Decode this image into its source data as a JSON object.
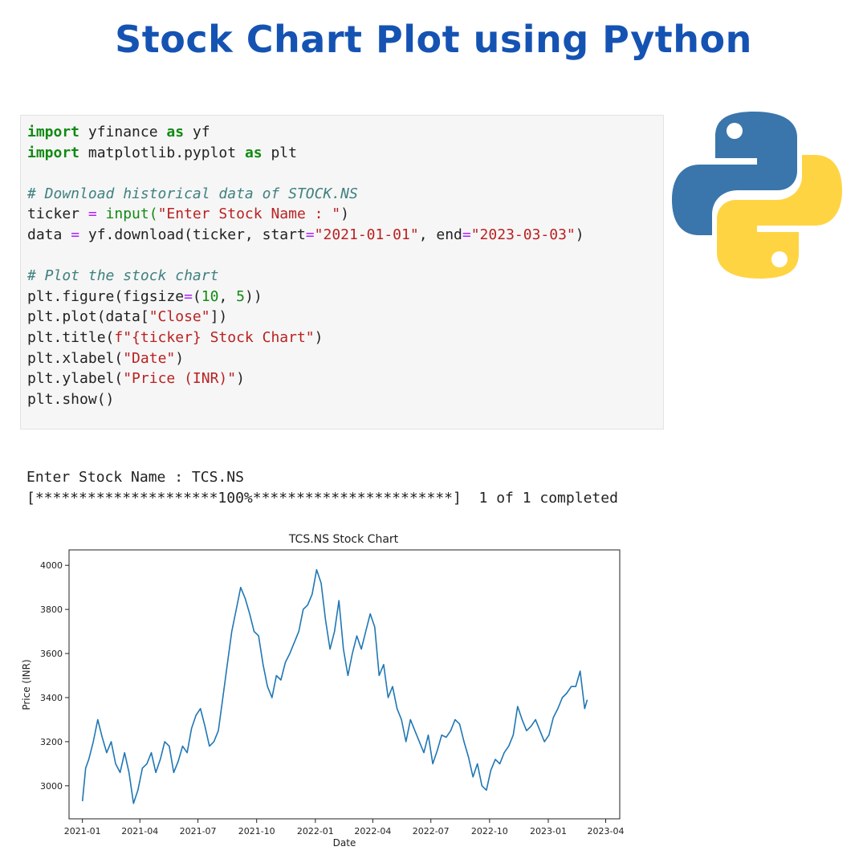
{
  "header": {
    "title": "Stock Chart Plot using Python"
  },
  "code": {
    "import_kw": "import",
    "as_kw": "as",
    "mod_yfinance": " yfinance ",
    "alias_yf": " yf",
    "mod_matplotlib": " matplotlib.pyplot ",
    "alias_plt": " plt",
    "comment_download": "# Download historical data of STOCK.NS",
    "ticker_lhs": "ticker ",
    "eq": "=",
    "input_call": " input(",
    "prompt_str": "\"Enter Stock Name : \"",
    "close_paren": ")",
    "data_lhs": "data ",
    "download_call": " yf.download(ticker, start",
    "start_str": "\"2021-01-01\"",
    "end_kw": ", end",
    "end_str": "\"2023-03-03\"",
    "comment_plot": "# Plot the stock chart",
    "figure_call": "plt.figure(figsize",
    "figsize_open": "(",
    "fig_w": "10",
    "fig_sep": ", ",
    "fig_h": "5",
    "figure_close": "))",
    "plot_call": "plt.plot(data[",
    "close_str": "\"Close\"",
    "plot_close": "])",
    "title_call": "plt.title(",
    "title_str": "f\"{ticker} Stock Chart\"",
    "xlabel_call": "plt.xlabel(",
    "xlabel_str": "\"Date\"",
    "ylabel_call": "plt.ylabel(",
    "ylabel_str": "\"Price (INR)\"",
    "show_call": "plt.show()"
  },
  "output": {
    "prompt_line": "Enter Stock Name : TCS.NS",
    "progress_line": "[*********************100%***********************]  1 of 1 completed"
  },
  "logo": {
    "name": "python-logo",
    "colors": {
      "blue": "#3a76ab",
      "yellow": "#ffd443"
    }
  },
  "colors": {
    "title": "#1553b3",
    "line": "#1f77b4"
  },
  "chart_data": {
    "type": "line",
    "title": "TCS.NS Stock Chart",
    "xlabel": "Date",
    "ylabel": "Price (INR)",
    "xlim": [
      "2020-12-11",
      "2023-04-23"
    ],
    "ylim": [
      2850,
      4070
    ],
    "xticks": [
      "2021-01",
      "2021-04",
      "2021-07",
      "2021-10",
      "2022-01",
      "2022-04",
      "2022-07",
      "2022-10",
      "2023-01",
      "2023-04"
    ],
    "yticks": [
      3000,
      3200,
      3400,
      3600,
      3800,
      4000
    ],
    "grid": false,
    "series": [
      {
        "x": [
          "2021-01-01",
          "2021-01-06",
          "2021-01-11",
          "2021-01-18",
          "2021-01-25",
          "2021-02-01",
          "2021-02-08",
          "2021-02-15",
          "2021-02-22",
          "2021-03-01",
          "2021-03-08",
          "2021-03-15",
          "2021-03-22",
          "2021-03-29",
          "2021-04-05",
          "2021-04-12",
          "2021-04-19",
          "2021-04-26",
          "2021-05-03",
          "2021-05-10",
          "2021-05-17",
          "2021-05-24",
          "2021-05-31",
          "2021-06-07",
          "2021-06-14",
          "2021-06-21",
          "2021-06-28",
          "2021-07-05",
          "2021-07-12",
          "2021-07-19",
          "2021-07-26",
          "2021-08-02",
          "2021-08-09",
          "2021-08-16",
          "2021-08-23",
          "2021-08-30",
          "2021-09-06",
          "2021-09-13",
          "2021-09-20",
          "2021-09-27",
          "2021-10-04",
          "2021-10-11",
          "2021-10-18",
          "2021-10-25",
          "2021-11-01",
          "2021-11-08",
          "2021-11-15",
          "2021-11-22",
          "2021-11-29",
          "2021-12-06",
          "2021-12-13",
          "2021-12-20",
          "2021-12-27",
          "2022-01-03",
          "2022-01-10",
          "2022-01-17",
          "2022-01-24",
          "2022-01-31",
          "2022-02-07",
          "2022-02-14",
          "2022-02-21",
          "2022-02-28",
          "2022-03-07",
          "2022-03-14",
          "2022-03-21",
          "2022-03-28",
          "2022-04-04",
          "2022-04-11",
          "2022-04-18",
          "2022-04-25",
          "2022-05-02",
          "2022-05-09",
          "2022-05-16",
          "2022-05-23",
          "2022-05-30",
          "2022-06-06",
          "2022-06-13",
          "2022-06-20",
          "2022-06-27",
          "2022-07-04",
          "2022-07-11",
          "2022-07-18",
          "2022-07-25",
          "2022-08-01",
          "2022-08-08",
          "2022-08-15",
          "2022-08-22",
          "2022-08-29",
          "2022-09-05",
          "2022-09-12",
          "2022-09-19",
          "2022-09-26",
          "2022-10-03",
          "2022-10-10",
          "2022-10-17",
          "2022-10-24",
          "2022-10-31",
          "2022-11-07",
          "2022-11-14",
          "2022-11-21",
          "2022-11-28",
          "2022-12-05",
          "2022-12-12",
          "2022-12-19",
          "2022-12-26",
          "2023-01-02",
          "2023-01-09",
          "2023-01-16",
          "2023-01-23",
          "2023-01-30",
          "2023-02-06",
          "2023-02-13",
          "2023-02-20",
          "2023-02-27",
          "2023-03-03"
        ],
        "values": [
          2930,
          3080,
          3120,
          3200,
          3300,
          3220,
          3150,
          3200,
          3100,
          3060,
          3150,
          3060,
          2920,
          2980,
          3080,
          3100,
          3150,
          3060,
          3120,
          3200,
          3180,
          3060,
          3110,
          3180,
          3150,
          3260,
          3320,
          3350,
          3270,
          3180,
          3200,
          3250,
          3400,
          3550,
          3700,
          3800,
          3900,
          3850,
          3780,
          3700,
          3680,
          3550,
          3450,
          3400,
          3500,
          3480,
          3560,
          3600,
          3650,
          3700,
          3800,
          3820,
          3870,
          3980,
          3920,
          3750,
          3620,
          3700,
          3840,
          3620,
          3500,
          3600,
          3680,
          3620,
          3700,
          3780,
          3720,
          3500,
          3550,
          3400,
          3450,
          3350,
          3300,
          3200,
          3300,
          3250,
          3200,
          3150,
          3230,
          3100,
          3160,
          3230,
          3220,
          3250,
          3300,
          3280,
          3200,
          3130,
          3040,
          3100,
          3000,
          2980,
          3070,
          3120,
          3100,
          3150,
          3180,
          3230,
          3360,
          3300,
          3250,
          3270,
          3300,
          3250,
          3200,
          3230,
          3310,
          3350,
          3400,
          3420,
          3450,
          3450,
          3520,
          3350,
          3390
        ]
      }
    ]
  }
}
